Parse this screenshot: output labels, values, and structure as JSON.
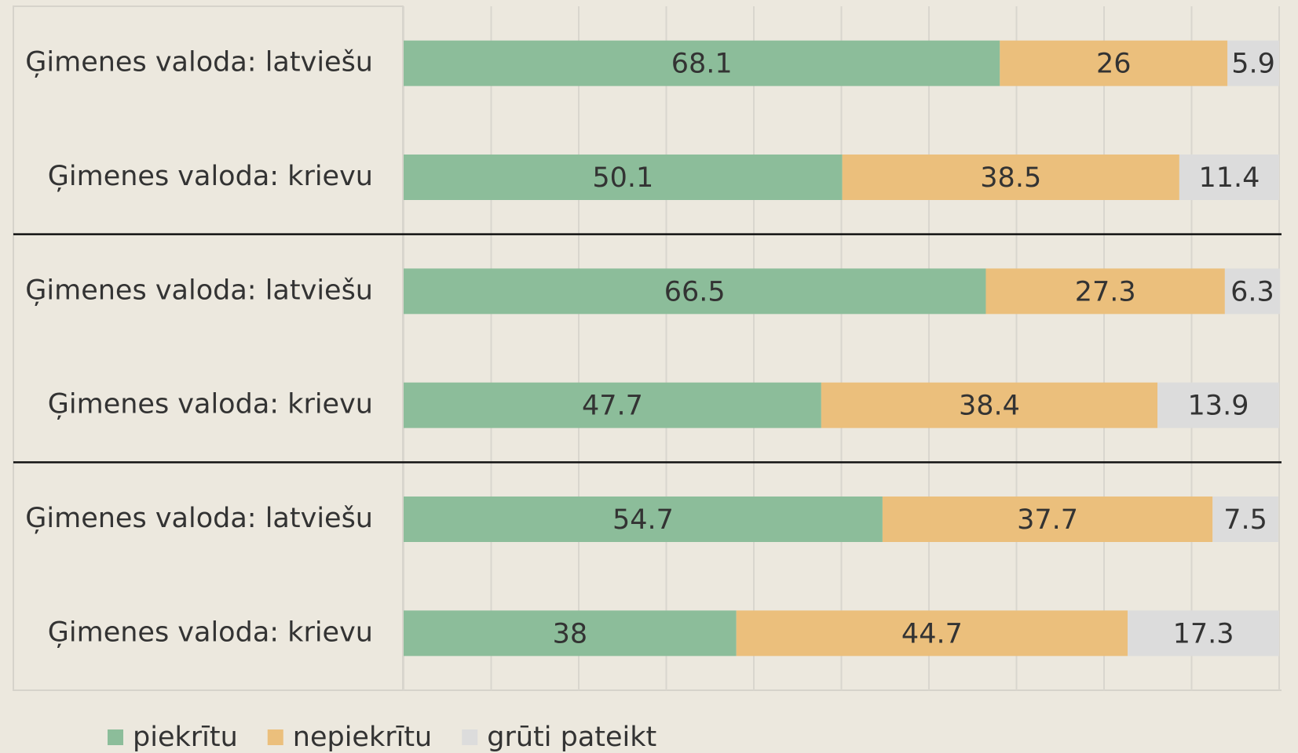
{
  "chart_data": {
    "type": "stacked-bar-horizontal",
    "categories": [
      "Ģimenes valoda: latviešu",
      "Ģimenes valoda: krievu",
      "Ģimenes valoda: latviešu",
      "Ģimenes valoda: krievu",
      "Ģimenes valoda: latviešu",
      "Ģimenes valoda: krievu"
    ],
    "series": [
      {
        "name": "piekrītu",
        "color": "#8cbd9a",
        "values": [
          68.1,
          50.1,
          66.5,
          47.7,
          54.7,
          38
        ]
      },
      {
        "name": "nepiekrītu",
        "color": "#ebbf7c",
        "values": [
          26,
          38.5,
          27.3,
          38.4,
          37.7,
          44.7
        ]
      },
      {
        "name": "grūti pateikt",
        "color": "#dcdcdc",
        "values": [
          5.9,
          11.4,
          6.3,
          13.9,
          7.5,
          17.3
        ]
      }
    ],
    "xlim": [
      0,
      100
    ],
    "xticks": [
      0,
      10,
      20,
      30,
      40,
      50,
      60,
      70,
      80,
      90,
      100
    ],
    "grid": true,
    "legend": "bottom"
  }
}
